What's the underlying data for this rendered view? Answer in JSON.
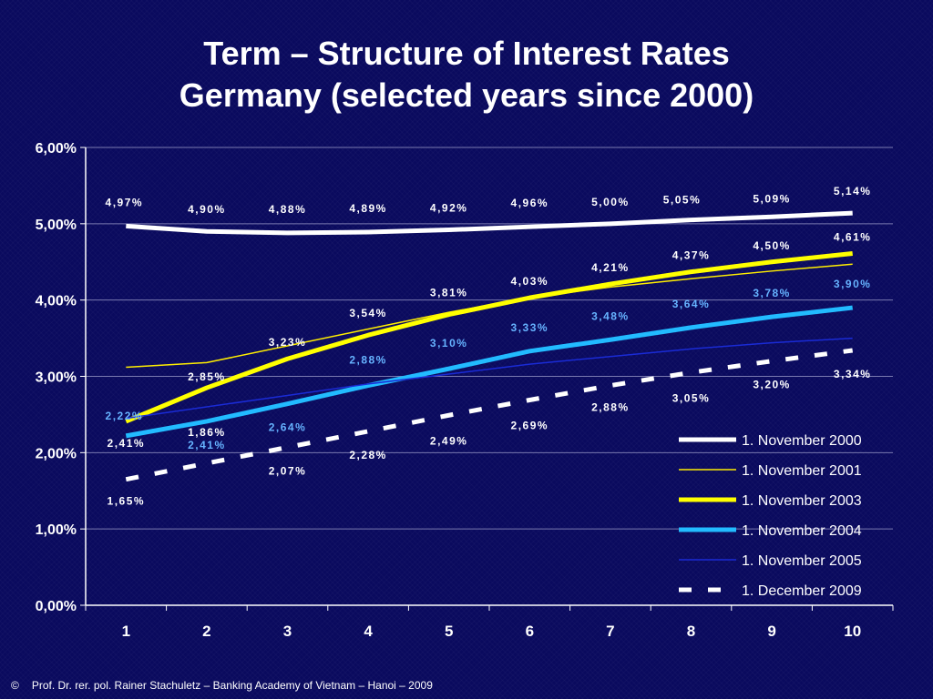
{
  "slide": {
    "title_line1": "Term – Structure of Interest Rates",
    "title_line2": "Germany (selected years since 2000)",
    "footer_symbol": "©",
    "footer_text": "Prof. Dr. rer. pol. Rainer Stachuletz – Banking Academy of Vietnam – Hanoi –  2009"
  },
  "chart_data": {
    "type": "line",
    "categories": [
      "1",
      "2",
      "3",
      "4",
      "5",
      "6",
      "7",
      "8",
      "9",
      "10"
    ],
    "ylim": [
      0,
      6
    ],
    "yticks": [
      "0,00%",
      "1,00%",
      "2,00%",
      "3,00%",
      "4,00%",
      "5,00%",
      "6,00%"
    ],
    "grid": true,
    "legend_position": "bottom-right",
    "series": [
      {
        "name": "1. November 2000",
        "values": [
          4.97,
          4.9,
          4.88,
          4.89,
          4.92,
          4.96,
          5.0,
          5.05,
          5.09,
          5.14
        ],
        "labels": [
          "4,97%",
          "4,90%",
          "4,88%",
          "4,89%",
          "4,92%",
          "4,96%",
          "5,00%",
          "5,05%",
          "5,09%",
          "5,14%"
        ],
        "color": "#ffffff",
        "style": "thick"
      },
      {
        "name": "1. November 2001",
        "values": [
          3.12,
          3.18,
          3.4,
          3.62,
          3.84,
          4.03,
          4.17,
          4.28,
          4.38,
          4.47
        ],
        "labels": [],
        "color": "#ffee00",
        "style": "thin"
      },
      {
        "name": "1. November 2003",
        "values": [
          2.41,
          2.85,
          3.23,
          3.54,
          3.81,
          4.03,
          4.21,
          4.37,
          4.5,
          4.61
        ],
        "labels": [
          "2,41%",
          "2,85%",
          "3,23%",
          "3,54%",
          "3,81%",
          "4,03%",
          "4,21%",
          "4,37%",
          "4,50%",
          "4,61%"
        ],
        "color": "#ffff00",
        "style": "thick"
      },
      {
        "name": "1. November 2004",
        "values": [
          2.22,
          2.41,
          2.64,
          2.88,
          3.1,
          3.33,
          3.48,
          3.64,
          3.78,
          3.9
        ],
        "labels": [
          "2,22%",
          "2,41%",
          "2,64%",
          "2,88%",
          "3,10%",
          "3,33%",
          "3,48%",
          "3,64%",
          "3,78%",
          "3,90%"
        ],
        "color": "#22bbff",
        "style": "thick"
      },
      {
        "name": "1. November 2005",
        "values": [
          2.45,
          2.6,
          2.75,
          2.9,
          3.03,
          3.16,
          3.26,
          3.36,
          3.44,
          3.5
        ],
        "labels": [],
        "color": "#1a2bd6",
        "style": "thin"
      },
      {
        "name": "1. December 2009",
        "values": [
          1.65,
          1.86,
          2.07,
          2.28,
          2.49,
          2.69,
          2.88,
          3.05,
          3.2,
          3.34
        ],
        "labels": [
          "1,65%",
          "1,86%",
          "2,07%",
          "2,28%",
          "2,49%",
          "2,69%",
          "2,88%",
          "3,05%",
          "3,20%",
          "3,34%"
        ],
        "color": "#ffffff",
        "style": "dashed"
      }
    ]
  }
}
